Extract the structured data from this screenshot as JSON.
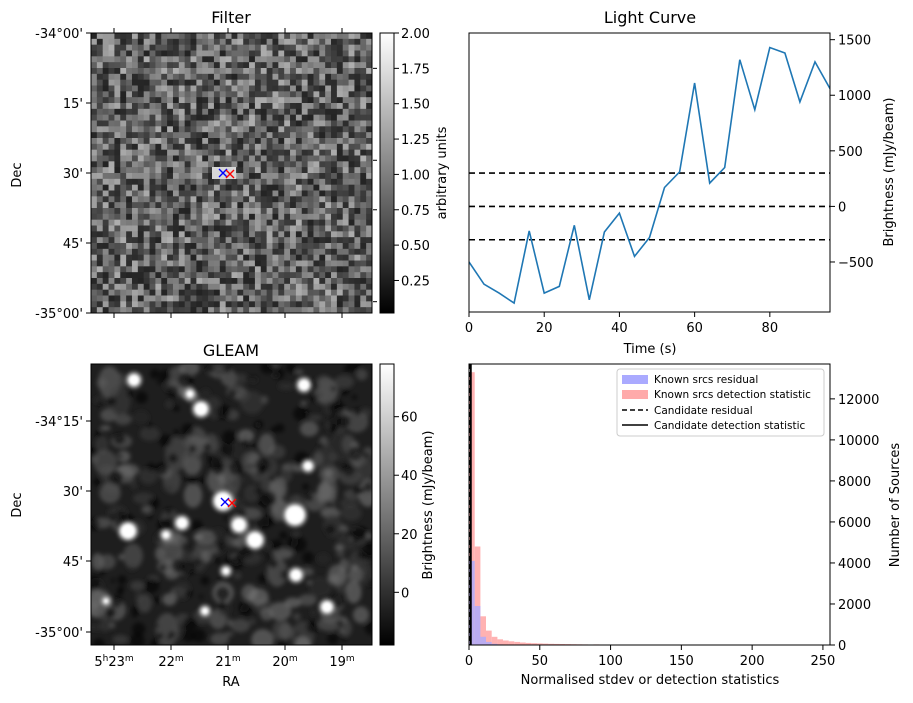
{
  "colors": {
    "line": "#1f77b4",
    "known_residual": "#aaaaff",
    "known_detection": "#ffaaaa",
    "candidate": "#000000",
    "marker_blue": "#0000ff",
    "marker_red": "#ff0000"
  },
  "filter_panel": {
    "title": "Filter",
    "ylabel": "Dec",
    "dec_ticks": [
      "-34°00'",
      "15'",
      "30'",
      "45'",
      "-35°00'"
    ],
    "colorbar_label": "arbitrary units",
    "colorbar_ticks": [
      "2.00",
      "1.75",
      "1.50",
      "1.25",
      "1.00",
      "0.75",
      "0.50",
      "0.25"
    ],
    "colorbar_range": [
      0.02,
      2.0
    ]
  },
  "gleam_panel": {
    "title": "GLEAM",
    "xlabel": "RA",
    "ylabel": "Dec",
    "dec_ticks": [
      "-34°15'",
      "30'",
      "45'",
      "-35°00'"
    ],
    "ra_ticks": [
      {
        "h": "5",
        "m": "23"
      },
      {
        "h": "",
        "m": "22"
      },
      {
        "h": "",
        "m": "21"
      },
      {
        "h": "",
        "m": "20"
      },
      {
        "h": "",
        "m": "19"
      }
    ],
    "colorbar_label": "Brightness (mJy/beam)",
    "colorbar_ticks": [
      "60",
      "40",
      "20",
      "0"
    ],
    "colorbar_range": [
      -18,
      78
    ]
  },
  "chart_data": [
    {
      "type": "line",
      "title": "Light Curve",
      "xlabel": "Time (s)",
      "ylabel": "Brightness (mJy/beam)",
      "xlim": [
        0,
        96
      ],
      "ylim": [
        -950,
        1560
      ],
      "x_ticks": [
        0,
        20,
        40,
        60,
        80
      ],
      "y_ticks": [
        -500,
        0,
        500,
        1000,
        1500
      ],
      "x": [
        0,
        4,
        8,
        12,
        16,
        20,
        24,
        28,
        32,
        36,
        40,
        44,
        48,
        52,
        56,
        60,
        64,
        68,
        72,
        76,
        80,
        84,
        88,
        92,
        96
      ],
      "values": [
        -500,
        -700,
        -780,
        -870,
        -220,
        -780,
        -720,
        -170,
        -840,
        -230,
        -60,
        -450,
        -280,
        170,
        310,
        1110,
        210,
        350,
        1320,
        870,
        1430,
        1380,
        940,
        1300,
        1060
      ],
      "hlines": [
        300,
        0,
        -300
      ]
    },
    {
      "type": "bar",
      "xlabel": "Normalised stdev or detection statistics",
      "ylabel": "Number of Sources",
      "xlim": [
        0,
        255
      ],
      "ylim": [
        0,
        13700
      ],
      "x_ticks": [
        0,
        50,
        100,
        150,
        200,
        250
      ],
      "y_ticks": [
        0,
        2000,
        4000,
        6000,
        8000,
        10000,
        12000
      ],
      "legend_position": "top-right",
      "bin_width": 4,
      "series": [
        {
          "name": "Known srcs residual",
          "bin_starts": [
            0,
            4,
            8,
            12,
            16,
            20,
            24,
            28
          ],
          "values": [
            4100,
            1900,
            400,
            150,
            60,
            30,
            15,
            10
          ]
        },
        {
          "name": "Known srcs detection statistic",
          "bin_starts": [
            0,
            4,
            8,
            12,
            16,
            20,
            24,
            28,
            32,
            36,
            40,
            44,
            48,
            52,
            56,
            60,
            64,
            68,
            72,
            76,
            80,
            88,
            96,
            104,
            112,
            120,
            140,
            150,
            170,
            200,
            240
          ],
          "values": [
            13300,
            4800,
            1400,
            700,
            400,
            280,
            220,
            180,
            150,
            120,
            100,
            90,
            80,
            70,
            60,
            55,
            50,
            45,
            40,
            35,
            30,
            28,
            25,
            22,
            20,
            18,
            15,
            12,
            25,
            20,
            12
          ]
        },
        {
          "name": "Candidate residual",
          "lines": [
            0.7
          ]
        },
        {
          "name": "Candidate detection statistic",
          "lines": [
            1.3
          ]
        }
      ]
    }
  ]
}
